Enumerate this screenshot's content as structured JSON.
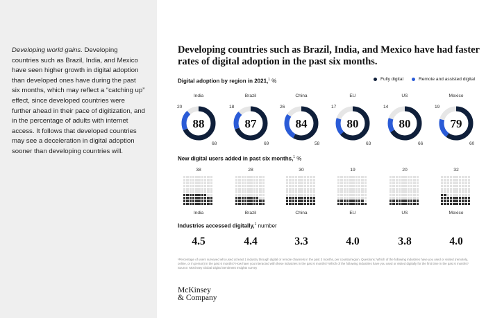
{
  "sidebar": {
    "lead": "Developing world gains.",
    "body": " Developing countries such as Brazil, India, and Mexico have seen higher growth in digital adoption than developed ones have during the past six months, which may reflect a “catching up” effect, since developed countries were further ahead in their pace of digitization, and in the percentage of adults with internet access. It follows that developed countries may see a deceleration in digital adoption sooner than developing countries will."
  },
  "chart_data": {
    "title": "Developing countries such as Brazil, India, and Mexico have had faster rates of digital adoption in the past six months.",
    "countries": [
      "India",
      "Brazil",
      "China",
      "EU",
      "US",
      "Mexico"
    ],
    "digital_adoption": {
      "type": "donut",
      "label": "Digital adoption by region in 2021,",
      "footnote_mark": "1",
      "unit": "%",
      "legend": [
        {
          "name": "Fully digital",
          "color": "#0f1f3a"
        },
        {
          "name": "Remote and assisted digital",
          "color": "#2a5bd7"
        }
      ],
      "totals": [
        "88",
        "87",
        "84",
        "80",
        "80",
        "79"
      ],
      "remote_assisted": [
        "20",
        "18",
        "26",
        "17",
        "14",
        "19"
      ],
      "fully_digital": [
        "68",
        "69",
        "58",
        "63",
        "66",
        "60"
      ]
    },
    "new_users": {
      "type": "waffle",
      "label": "New digital users added in past six months,",
      "footnote_mark": "1",
      "unit": "%",
      "values": [
        "38",
        "28",
        "30",
        "19",
        "20",
        "32"
      ]
    },
    "industries": {
      "type": "table",
      "label": "Industries accessed digitally,",
      "footnote_mark": "1",
      "unit": "number",
      "values": [
        "4.5",
        "4.4",
        "3.3",
        "4.0",
        "3.8",
        "4.0"
      ]
    }
  },
  "footnote": {
    "text": "¹Percentage of users surveyed who used at least 1 industry through digital or remote channels in the past 3 months, per country/region. Questions: Which of the following industries have you used or visited (remotely, online, or in person) in the past 6 months? How have you interacted with these industries in the past 6 months? Which of the following industries have you used or visited digitally for the first time in the past 6 months?",
    "source": "Source: McKinsey Global Digital Sentiment Insights survey"
  },
  "logo": {
    "line1": "McKinsey",
    "line2": "& Company"
  }
}
